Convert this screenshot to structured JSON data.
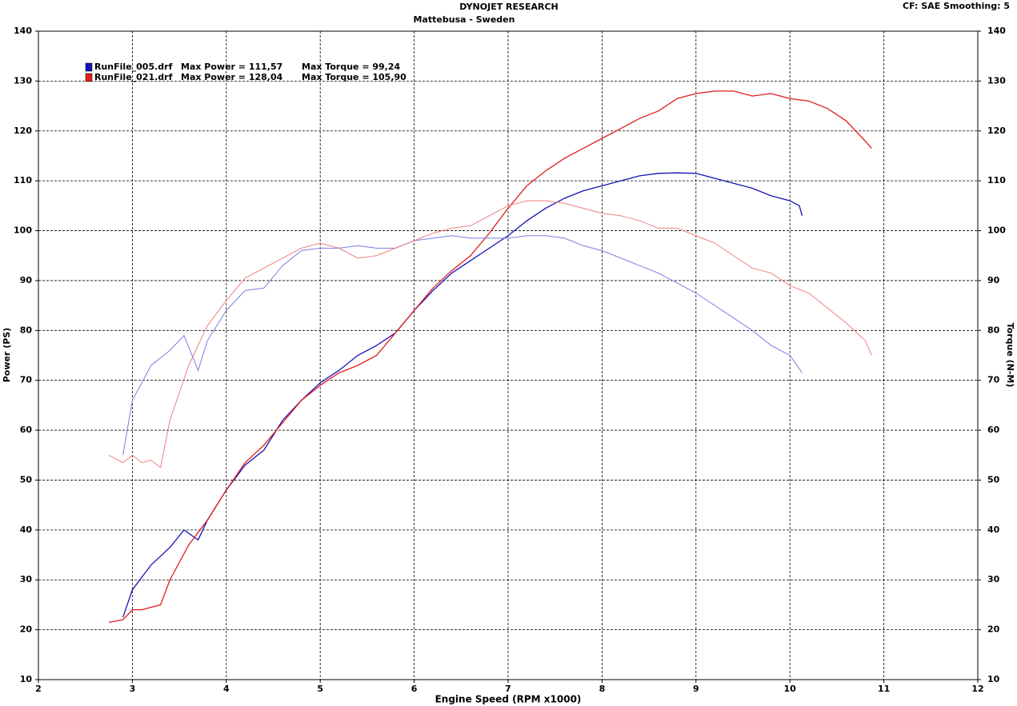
{
  "chart_data": {
    "type": "line",
    "title": "DYNOJET RESEARCH",
    "subtitle": "Mattebusa - Sweden",
    "corner_note": "CF: SAE  Smoothing: 5",
    "x_label": "Engine Speed (RPM x1000)",
    "y_label": "Power (PS)",
    "y2_label": "Torque (N-M)",
    "xlim": [
      2,
      12
    ],
    "xticks": [
      2,
      3,
      4,
      5,
      6,
      7,
      8,
      9,
      10,
      11,
      12
    ],
    "ylim": [
      10,
      140
    ],
    "yticks": [
      10,
      20,
      30,
      40,
      50,
      60,
      70,
      80,
      90,
      100,
      110,
      120,
      130,
      140
    ],
    "y2lim": [
      10,
      140
    ],
    "y2ticks": [
      10,
      20,
      30,
      40,
      50,
      60,
      70,
      80,
      90,
      100,
      110,
      120,
      130,
      140
    ],
    "grid": true,
    "series": [
      {
        "name": "RunFile_005.drf",
        "max_power": "Max Power = 111,57",
        "max_torque": "Max Torque = 99,24",
        "color": "#1414b4",
        "x": [
          2.9,
          3.0,
          3.2,
          3.4,
          3.55,
          3.7,
          3.8,
          4.0,
          4.2,
          4.4,
          4.6,
          4.8,
          5.0,
          5.2,
          5.4,
          5.6,
          5.8,
          6.0,
          6.2,
          6.4,
          6.6,
          6.8,
          7.0,
          7.2,
          7.4,
          7.6,
          7.8,
          8.0,
          8.2,
          8.4,
          8.6,
          8.8,
          9.0,
          9.2,
          9.4,
          9.6,
          9.8,
          10.0,
          10.1,
          10.13
        ],
        "values": [
          22.5,
          28,
          33,
          36.5,
          40,
          38,
          42,
          48,
          53,
          56,
          62,
          66,
          69.5,
          72,
          75,
          77,
          79.5,
          84,
          88,
          91.5,
          94,
          96.5,
          99,
          102,
          104.5,
          106.5,
          108,
          109,
          110,
          111,
          111.5,
          111.6,
          111.5,
          110.5,
          109.5,
          108.5,
          107,
          106,
          105,
          103
        ]
      },
      {
        "name": "RunFile_021.drf",
        "max_power": "Max Power = 128,04",
        "max_torque": "Max Torque = 105,90",
        "color": "#e01c1c",
        "x": [
          2.75,
          2.9,
          3.0,
          3.1,
          3.2,
          3.3,
          3.4,
          3.6,
          3.8,
          4.0,
          4.2,
          4.4,
          4.6,
          4.8,
          5.0,
          5.2,
          5.4,
          5.6,
          5.8,
          6.0,
          6.2,
          6.4,
          6.6,
          6.8,
          7.0,
          7.2,
          7.4,
          7.6,
          7.8,
          8.0,
          8.2,
          8.4,
          8.6,
          8.8,
          9.0,
          9.2,
          9.4,
          9.6,
          9.8,
          10.0,
          10.2,
          10.4,
          10.6,
          10.8,
          10.87
        ],
        "values": [
          21.5,
          22,
          24,
          24,
          24.5,
          25,
          30,
          37,
          42,
          48,
          53.5,
          57,
          61.5,
          66,
          69,
          71.5,
          73,
          75,
          79.5,
          84,
          88.5,
          92,
          95,
          99.5,
          104.5,
          109,
          112,
          114.5,
          116.5,
          118.5,
          120.5,
          122.5,
          124,
          126.5,
          127.5,
          128,
          128,
          127,
          127.5,
          126.5,
          126,
          124.5,
          122,
          118,
          116.5
        ]
      },
      {
        "axis": "y2",
        "color": "#7c7ce6",
        "x": [
          2.9,
          3.0,
          3.2,
          3.4,
          3.55,
          3.7,
          3.8,
          4.0,
          4.2,
          4.4,
          4.6,
          4.8,
          5.0,
          5.2,
          5.4,
          5.6,
          5.8,
          6.0,
          6.2,
          6.4,
          6.6,
          6.8,
          7.0,
          7.2,
          7.4,
          7.6,
          7.8,
          8.0,
          8.2,
          8.4,
          8.6,
          8.8,
          9.0,
          9.2,
          9.4,
          9.6,
          9.8,
          10.0,
          10.13
        ],
        "values": [
          55,
          66,
          73,
          76,
          79,
          72,
          78,
          84,
          88,
          88.5,
          93,
          96,
          96.5,
          96.5,
          97,
          96.5,
          96.5,
          98,
          98.5,
          99,
          98.5,
          98.5,
          98.5,
          99,
          99,
          98.5,
          97,
          96,
          94.5,
          93,
          91.5,
          89.5,
          87.5,
          85,
          82.5,
          80,
          77,
          75,
          71.5
        ]
      },
      {
        "axis": "y2",
        "color": "#f08080",
        "x": [
          2.75,
          2.9,
          3.0,
          3.1,
          3.2,
          3.3,
          3.4,
          3.6,
          3.8,
          4.0,
          4.2,
          4.4,
          4.6,
          4.8,
          5.0,
          5.2,
          5.4,
          5.6,
          5.8,
          6.0,
          6.2,
          6.4,
          6.6,
          6.8,
          7.0,
          7.2,
          7.4,
          7.6,
          7.8,
          8.0,
          8.2,
          8.4,
          8.6,
          8.8,
          9.0,
          9.2,
          9.4,
          9.6,
          9.8,
          10.0,
          10.2,
          10.4,
          10.6,
          10.8,
          10.87
        ],
        "values": [
          55,
          53.5,
          55,
          53.5,
          54,
          52.5,
          62,
          73,
          81,
          86,
          90.5,
          92.5,
          94.5,
          96.5,
          97.5,
          96.5,
          94.5,
          95,
          96.5,
          98,
          99.5,
          100.5,
          101,
          103,
          105,
          106,
          106,
          105.5,
          104.5,
          103.5,
          103,
          102,
          100.5,
          100.5,
          99,
          97.5,
          95,
          92.5,
          91.5,
          89,
          87.5,
          84.5,
          81.5,
          78,
          75
        ]
      }
    ]
  }
}
